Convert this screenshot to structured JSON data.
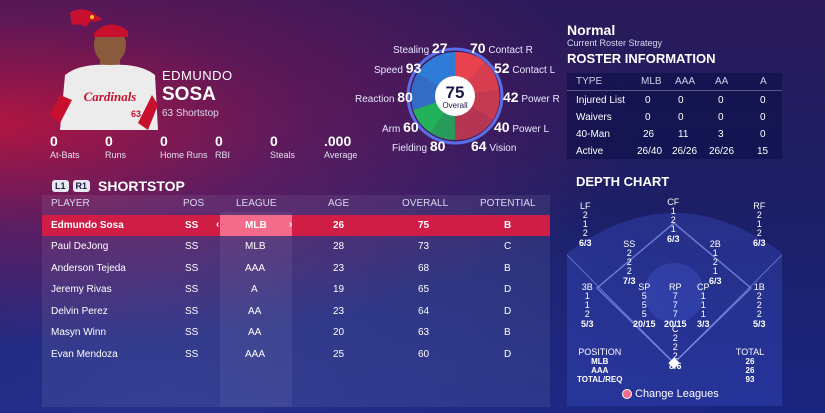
{
  "player": {
    "first_name": "EDMUNDO",
    "last_name": "SOSA",
    "number": "63",
    "position": "Shortstop",
    "jersey_text": "Cardinals",
    "stats": [
      {
        "value": "0",
        "label": "At-Bats"
      },
      {
        "value": "0",
        "label": "Runs"
      },
      {
        "value": "0",
        "label": "Home Runs"
      },
      {
        "value": "0",
        "label": "RBI"
      },
      {
        "value": "0",
        "label": "Steals"
      },
      {
        "value": ".000",
        "label": "Average"
      }
    ]
  },
  "ratings": {
    "overall": "75",
    "overall_label": "Overall",
    "attributes": [
      {
        "name": "Stealing",
        "value": "27"
      },
      {
        "name": "Speed",
        "value": "93"
      },
      {
        "name": "Reaction",
        "value": "80"
      },
      {
        "name": "Arm",
        "value": "60"
      },
      {
        "name": "Fielding",
        "value": "80"
      },
      {
        "name": "Contact R",
        "value": "70"
      },
      {
        "name": "Contact L",
        "value": "52"
      },
      {
        "name": "Power R",
        "value": "42"
      },
      {
        "name": "Power L",
        "value": "40"
      },
      {
        "name": "Vision",
        "value": "64"
      }
    ],
    "colors": {
      "speed": "#2f7bd8",
      "fielding": "#23b25a",
      "contact": "#e8424f"
    }
  },
  "roster": {
    "bumper_left": "L1",
    "bumper_right": "R1",
    "title": "SHORTSTOP",
    "headers": [
      "PLAYER",
      "POS",
      "LEAGUE",
      "AGE",
      "OVERALL",
      "POTENTIAL"
    ],
    "rows": [
      [
        "Edmundo Sosa",
        "SS",
        "MLB",
        "26",
        "75",
        "B"
      ],
      [
        "Paul DeJong",
        "SS",
        "MLB",
        "28",
        "73",
        "C"
      ],
      [
        "Anderson Tejeda",
        "SS",
        "AAA",
        "23",
        "68",
        "B"
      ],
      [
        "Jeremy Rivas",
        "SS",
        "A",
        "19",
        "65",
        "D"
      ],
      [
        "Delvin Perez",
        "SS",
        "AA",
        "23",
        "64",
        "D"
      ],
      [
        "Masyn Winn",
        "SS",
        "AA",
        "20",
        "63",
        "B"
      ],
      [
        "Evan Mendoza",
        "SS",
        "AAA",
        "25",
        "60",
        "D"
      ]
    ],
    "selected_arrow_left": "‹",
    "selected_arrow_right": "›"
  },
  "strategy": {
    "name": "Normal",
    "subtitle": "Current Roster Strategy"
  },
  "roster_info": {
    "title": "ROSTER INFORMATION",
    "headers": [
      "TYPE",
      "MLB",
      "AAA",
      "AA",
      "A"
    ],
    "rows": [
      [
        "Injured List",
        "0",
        "0",
        "0",
        "0"
      ],
      [
        "Waivers",
        "0",
        "0",
        "0",
        "0"
      ],
      [
        "40-Man",
        "26",
        "11",
        "3",
        "0"
      ],
      [
        "Active",
        "26/40",
        "26/26",
        "26/26",
        "15"
      ]
    ]
  },
  "depth_chart": {
    "title": "DEPTH CHART",
    "positions": [
      {
        "name": "LF",
        "counts": [
          "2",
          "1",
          "2"
        ],
        "ratio": "6/3"
      },
      {
        "name": "CF",
        "counts": [
          "1",
          "2",
          "1"
        ],
        "ratio": "6/3"
      },
      {
        "name": "RF",
        "counts": [
          "2",
          "1",
          "2"
        ],
        "ratio": "6/3"
      },
      {
        "name": "SS",
        "counts": [
          "2",
          "2",
          "2"
        ],
        "ratio": "7/3"
      },
      {
        "name": "2B",
        "counts": [
          "1",
          "2",
          "1"
        ],
        "ratio": "6/3"
      },
      {
        "name": "3B",
        "counts": [
          "1",
          "1",
          "2"
        ],
        "ratio": "5/3"
      },
      {
        "name": "SP",
        "counts": [
          "5",
          "5",
          "5"
        ],
        "ratio": "20/15"
      },
      {
        "name": "RP",
        "counts": [
          "7",
          "7",
          "7"
        ],
        "ratio": "20/15"
      },
      {
        "name": "CP",
        "counts": [
          "1",
          "1",
          "1"
        ],
        "ratio": "3/3"
      },
      {
        "name": "1B",
        "counts": [
          "2",
          "2",
          "2"
        ],
        "ratio": "5/3"
      },
      {
        "name": "C",
        "counts": [
          "2",
          "2",
          "2"
        ],
        "ratio": "8/6"
      }
    ],
    "legend_left_title": "POSITION",
    "legend_left_items": [
      "MLB",
      "AAA",
      "TOTAL/REQ"
    ],
    "legend_right_title": "TOTAL",
    "legend_right_items": [
      "26",
      "26",
      "93"
    ]
  },
  "footer": {
    "change_leagues": "Change Leagues"
  }
}
